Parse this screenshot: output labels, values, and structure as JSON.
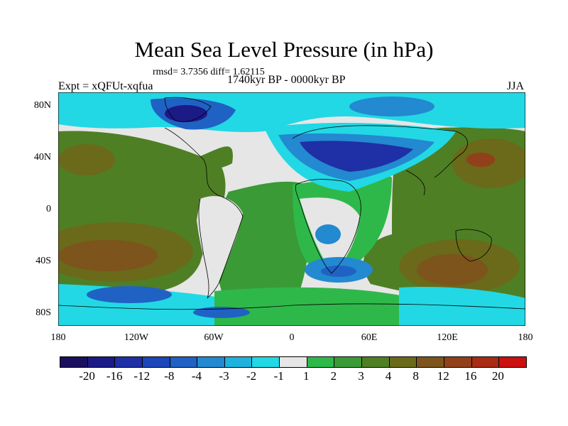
{
  "title": "Mean Sea Level Pressure (in hPa)",
  "stats": "rmsd= 3.7356 diff= 1.62115",
  "period": "1740kyr BP - 0000kyr BP",
  "expt": "Expt = xQFUt-xqfua",
  "season": "JJA",
  "y_axis": {
    "ticks": [
      {
        "label": "80N"
      },
      {
        "label": "40N"
      },
      {
        "label": "0"
      },
      {
        "label": "40S"
      },
      {
        "label": "80S"
      }
    ]
  },
  "x_axis": {
    "ticks": [
      {
        "label": "180"
      },
      {
        "label": "120W"
      },
      {
        "label": "60W"
      },
      {
        "label": "0"
      },
      {
        "label": "60E"
      },
      {
        "label": "120E"
      },
      {
        "label": "180"
      }
    ]
  },
  "colorbar": {
    "colors": [
      "#1a0f5e",
      "#1b1a86",
      "#1f2fa6",
      "#1b47b8",
      "#1f62c4",
      "#2389d0",
      "#1fb2dd",
      "#22d8e4",
      "#e6e6e6",
      "#2fb84a",
      "#3a9a36",
      "#4f7f24",
      "#6a6a1a",
      "#7d541b",
      "#924019",
      "#a82b14",
      "#cc1010"
    ],
    "labels": [
      "-20",
      "-16",
      "-12",
      "-8",
      "-4",
      "-3",
      "-2",
      "-1",
      "1",
      "2",
      "3",
      "4",
      "8",
      "12",
      "16",
      "20"
    ]
  }
}
